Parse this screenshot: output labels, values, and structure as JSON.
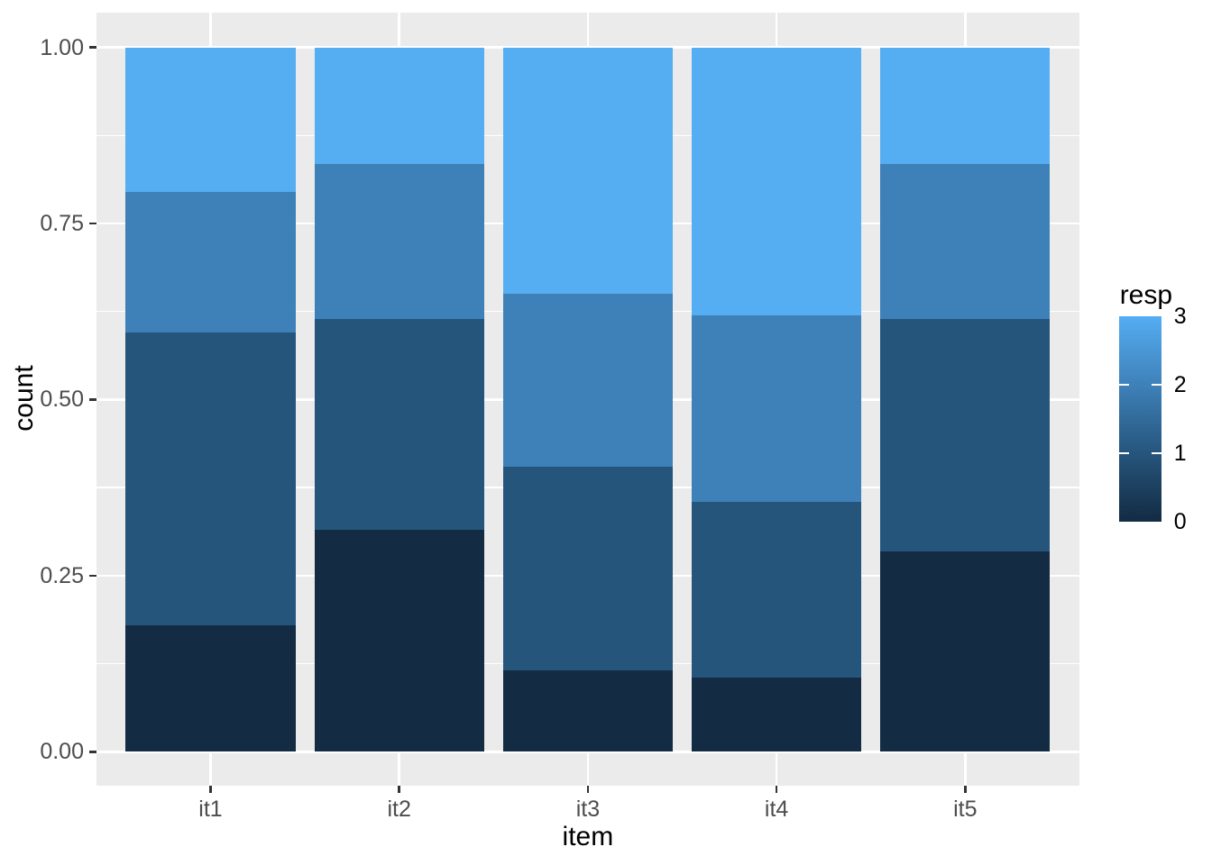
{
  "figure": {
    "background": "#FFFFFF",
    "panel_background": "#EBEBEB",
    "gridline_color": "#FFFFFF",
    "tick_mark_color": "#333333",
    "axis_text_color": "#4D4D4D",
    "axis_title_color": "#000000"
  },
  "chart_data": {
    "type": "bar",
    "stacked": true,
    "position": "fill",
    "title": "",
    "xlabel": "item",
    "ylabel": "count",
    "categories": [
      "it1",
      "it2",
      "it3",
      "it4",
      "it5"
    ],
    "series": [
      {
        "name": "0",
        "color": "#132B43",
        "values": [
          0.18,
          0.315,
          0.115,
          0.105,
          0.285
        ]
      },
      {
        "name": "1",
        "color": "#26557C",
        "values": [
          0.415,
          0.3,
          0.29,
          0.25,
          0.33
        ]
      },
      {
        "name": "2",
        "color": "#3E81B9",
        "values": [
          0.2,
          0.22,
          0.245,
          0.265,
          0.22
        ]
      },
      {
        "name": "3",
        "color": "#55ADF2",
        "values": [
          0.205,
          0.165,
          0.35,
          0.38,
          0.165
        ]
      }
    ],
    "ylim": [
      0,
      1
    ],
    "y_axis": {
      "ticks": [
        {
          "value": 1.0,
          "label": "1.00"
        },
        {
          "value": 0.75,
          "label": "0.75"
        },
        {
          "value": 0.5,
          "label": "0.50"
        },
        {
          "value": 0.25,
          "label": "0.25"
        },
        {
          "value": 0.0,
          "label": "0.00"
        }
      ],
      "minor": [
        0.875,
        0.625,
        0.375,
        0.125
      ]
    },
    "grid": "on",
    "legend": {
      "title": "resp",
      "type": "colorbar",
      "position": "right",
      "value_range": [
        0,
        3
      ],
      "tick_values": [
        2,
        1
      ],
      "entries": [
        {
          "value": 3,
          "label": "3",
          "color": "#55ADF2"
        },
        {
          "value": 2,
          "label": "2",
          "color": "#3E81B9"
        },
        {
          "value": 1,
          "label": "1",
          "color": "#26557C"
        },
        {
          "value": 0,
          "label": "0",
          "color": "#132B43"
        }
      ]
    }
  }
}
